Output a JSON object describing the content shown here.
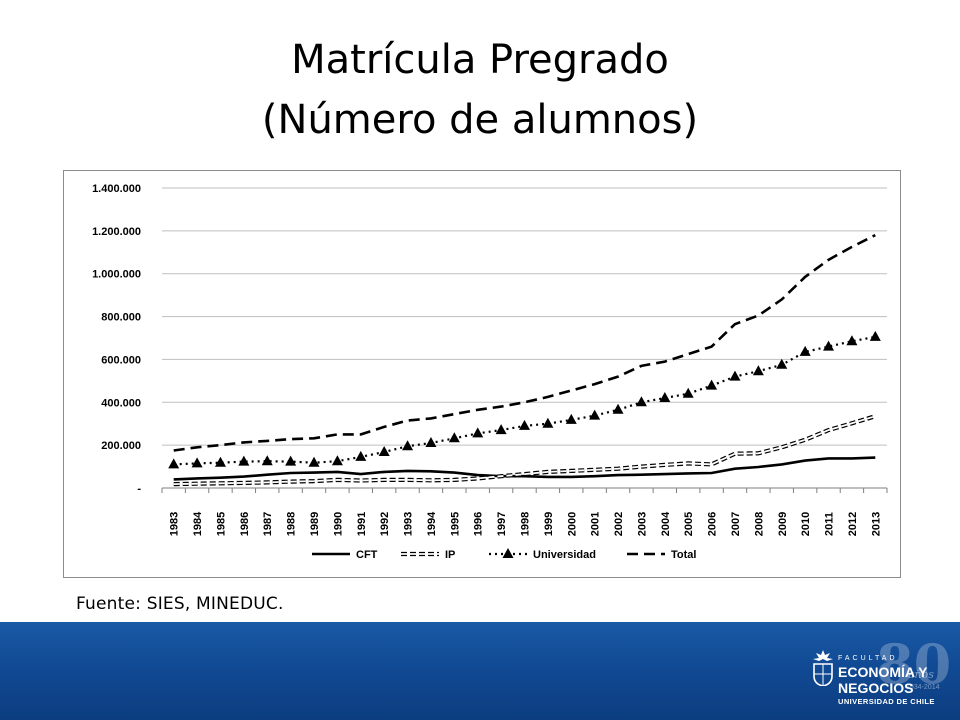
{
  "page": {
    "title_line1": "Matrícula Pregrado",
    "title_line2": "(Número de alumnos)",
    "source": "Fuente: SIES, MINEDUC."
  },
  "logo": {
    "faculty": "FACULTAD",
    "line1": "ECONOMÍA Y",
    "line2": "NEGOCIOS",
    "line3": "UNIVERSIDAD DE CHILE",
    "anniversary": "80",
    "anniversary_sub": "años",
    "anniversary_years": "1934-2014"
  },
  "colors": {
    "footer_band": "#114a94",
    "series": "#000000",
    "gridline": "#bfbfbf"
  },
  "chart_data": {
    "type": "line",
    "title": "",
    "xlabel": "",
    "ylabel": "",
    "x": [
      1983,
      1984,
      1985,
      1986,
      1987,
      1988,
      1989,
      1990,
      1991,
      1992,
      1993,
      1994,
      1995,
      1996,
      1997,
      1998,
      1999,
      2000,
      2001,
      2002,
      2003,
      2004,
      2005,
      2006,
      2007,
      2008,
      2009,
      2010,
      2011,
      2012,
      2013
    ],
    "ylim": [
      0,
      1400000
    ],
    "yticks": [
      0,
      200000,
      400000,
      600000,
      800000,
      1000000,
      1200000,
      1400000
    ],
    "ytick_labels": [
      "-",
      "200.000",
      "400.000",
      "600.000",
      "800.000",
      "1.000.000",
      "1.200.000",
      "1.400.000"
    ],
    "legend_position": "bottom",
    "grid": "horizontal",
    "series": [
      {
        "name": "CFT",
        "style": "solid",
        "values": [
          40000,
          45000,
          48000,
          53000,
          62000,
          70000,
          72000,
          75000,
          65000,
          75000,
          80000,
          78000,
          72000,
          60000,
          55000,
          55000,
          52000,
          52000,
          55000,
          60000,
          62000,
          65000,
          68000,
          70000,
          90000,
          98000,
          110000,
          128000,
          138000,
          138000,
          142000
        ]
      },
      {
        "name": "IP",
        "style": "dashed",
        "values": [
          18000,
          20000,
          22000,
          24000,
          26000,
          30000,
          32000,
          38000,
          35000,
          38000,
          38000,
          36000,
          38000,
          45000,
          55000,
          65000,
          75000,
          80000,
          85000,
          90000,
          100000,
          108000,
          115000,
          110000,
          160000,
          162000,
          190000,
          225000,
          270000,
          302000,
          335000
        ]
      },
      {
        "name": "Universidad",
        "style": "dotted-triangle",
        "values": [
          110000,
          115000,
          118000,
          123000,
          125000,
          123000,
          118000,
          125000,
          145000,
          168000,
          195000,
          210000,
          232000,
          255000,
          270000,
          290000,
          300000,
          318000,
          338000,
          365000,
          400000,
          420000,
          440000,
          478000,
          520000,
          545000,
          575000,
          635000,
          660000,
          685000,
          705000
        ]
      },
      {
        "name": "Total",
        "style": "long-dash",
        "values": [
          175000,
          190000,
          200000,
          213000,
          220000,
          228000,
          232000,
          250000,
          250000,
          285000,
          315000,
          325000,
          345000,
          365000,
          380000,
          400000,
          425000,
          455000,
          485000,
          520000,
          570000,
          590000,
          625000,
          660000,
          765000,
          805000,
          880000,
          985000,
          1065000,
          1125000,
          1180000
        ]
      }
    ]
  }
}
